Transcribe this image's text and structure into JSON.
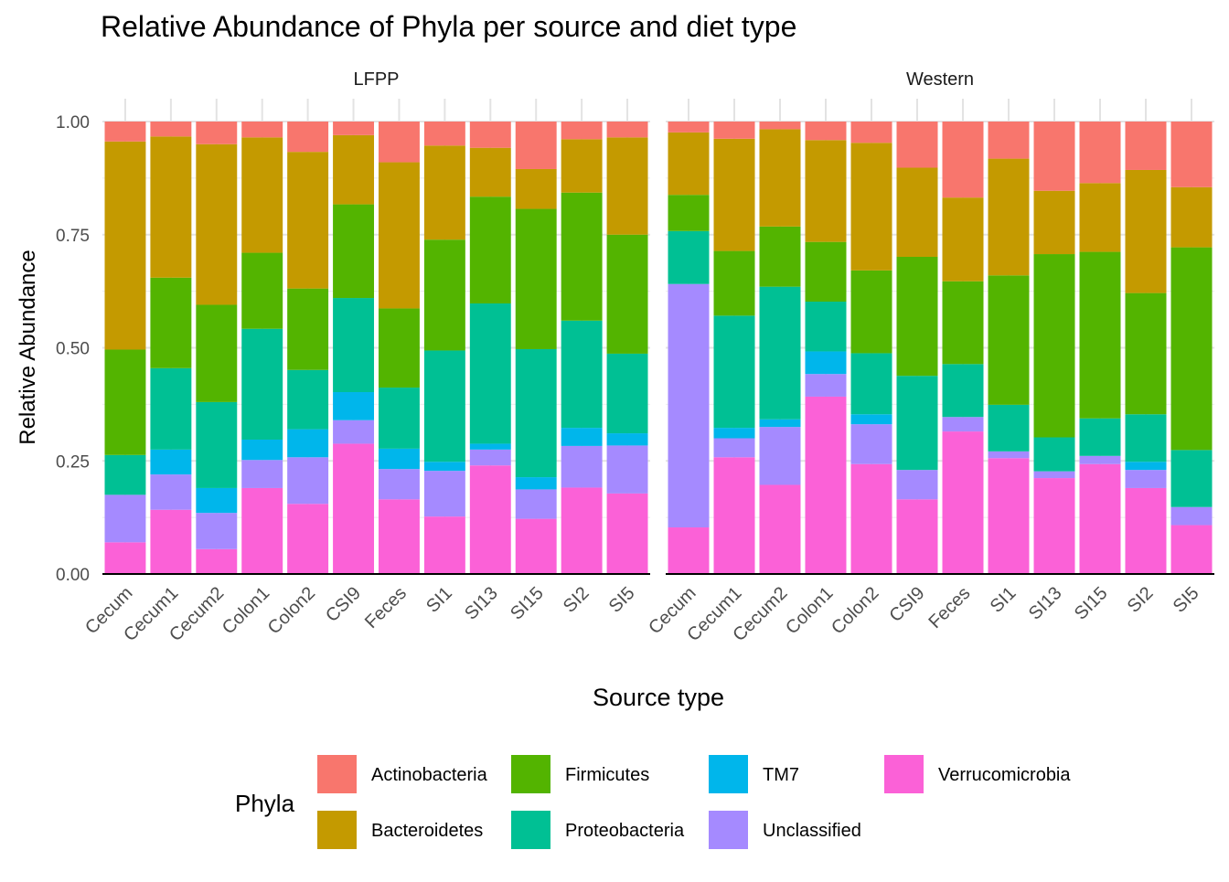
{
  "chart_data": {
    "type": "bar",
    "stacked": true,
    "title": "Relative Abundance of Phyla per source and diet type",
    "xlabel": "Source type",
    "ylabel": "Relative Abundance",
    "ylim": [
      0,
      1
    ],
    "yticks": [
      "0.00",
      "0.25",
      "0.50",
      "0.75",
      "1.00"
    ],
    "grid": true,
    "categories": [
      "Cecum",
      "Cecum1",
      "Cecum2",
      "Colon1",
      "Colon2",
      "CSI9",
      "Feces",
      "SI1",
      "SI13",
      "SI15",
      "SI2",
      "SI5"
    ],
    "legend": {
      "title": "Phyla",
      "position": "bottom",
      "items": [
        {
          "name": "Actinobacteria",
          "color": "#F8766D"
        },
        {
          "name": "Bacteroidetes",
          "color": "#C49A00"
        },
        {
          "name": "Firmicutes",
          "color": "#53B400"
        },
        {
          "name": "Proteobacteria",
          "color": "#00C094"
        },
        {
          "name": "TM7",
          "color": "#00B6EB"
        },
        {
          "name": "Unclassified",
          "color": "#A58AFF"
        },
        {
          "name": "Verrucomicrobia",
          "color": "#FB61D7"
        }
      ]
    },
    "stack_order_bottom_to_top": [
      "Verrucomicrobia",
      "Unclassified",
      "TM7",
      "Proteobacteria",
      "Firmicutes",
      "Bacteroidetes",
      "Actinobacteria"
    ],
    "panels": [
      {
        "label": "LFPP",
        "series": [
          {
            "name": "Verrucomicrobia",
            "values": [
              0.07,
              0.142,
              0.055,
              0.19,
              0.155,
              0.288,
              0.165,
              0.127,
              0.24,
              0.122,
              0.191,
              0.178
            ]
          },
          {
            "name": "Unclassified",
            "values": [
              0.105,
              0.078,
              0.08,
              0.062,
              0.103,
              0.052,
              0.067,
              0.101,
              0.035,
              0.065,
              0.092,
              0.106
            ]
          },
          {
            "name": "TM7",
            "values": [
              0.0,
              0.055,
              0.055,
              0.045,
              0.062,
              0.062,
              0.045,
              0.02,
              0.013,
              0.027,
              0.04,
              0.027
            ]
          },
          {
            "name": "Proteobacteria",
            "values": [
              0.088,
              0.18,
              0.19,
              0.245,
              0.131,
              0.208,
              0.135,
              0.246,
              0.31,
              0.283,
              0.237,
              0.176
            ]
          },
          {
            "name": "Firmicutes",
            "values": [
              0.233,
              0.2,
              0.215,
              0.168,
              0.18,
              0.207,
              0.175,
              0.245,
              0.236,
              0.31,
              0.283,
              0.263
            ]
          },
          {
            "name": "Bacteroidetes",
            "values": [
              0.46,
              0.312,
              0.355,
              0.255,
              0.302,
              0.153,
              0.323,
              0.208,
              0.108,
              0.088,
              0.118,
              0.215
            ]
          },
          {
            "name": "Actinobacteria",
            "values": [
              0.044,
              0.033,
              0.05,
              0.035,
              0.067,
              0.03,
              0.09,
              0.053,
              0.058,
              0.105,
              0.039,
              0.035
            ]
          }
        ]
      },
      {
        "label": "Western",
        "series": [
          {
            "name": "Verrucomicrobia",
            "values": [
              0.103,
              0.258,
              0.197,
              0.392,
              0.243,
              0.165,
              0.315,
              0.256,
              0.212,
              0.243,
              0.19,
              0.108
            ]
          },
          {
            "name": "Unclassified",
            "values": [
              0.538,
              0.042,
              0.128,
              0.05,
              0.088,
              0.065,
              0.032,
              0.015,
              0.015,
              0.018,
              0.04,
              0.04
            ]
          },
          {
            "name": "TM7",
            "values": [
              0.0,
              0.023,
              0.017,
              0.05,
              0.022,
              0.0,
              0.0,
              0.0,
              0.0,
              0.0,
              0.018,
              0.0
            ]
          },
          {
            "name": "Proteobacteria",
            "values": [
              0.117,
              0.248,
              0.293,
              0.11,
              0.135,
              0.208,
              0.117,
              0.103,
              0.075,
              0.083,
              0.105,
              0.126
            ]
          },
          {
            "name": "Firmicutes",
            "values": [
              0.08,
              0.143,
              0.133,
              0.132,
              0.183,
              0.263,
              0.183,
              0.286,
              0.405,
              0.368,
              0.268,
              0.448
            ]
          },
          {
            "name": "Bacteroidetes",
            "values": [
              0.138,
              0.248,
              0.215,
              0.225,
              0.282,
              0.197,
              0.185,
              0.258,
              0.14,
              0.152,
              0.272,
              0.133
            ]
          },
          {
            "name": "Actinobacteria",
            "values": [
              0.024,
              0.038,
              0.017,
              0.041,
              0.047,
              0.102,
              0.168,
              0.082,
              0.153,
              0.136,
              0.107,
              0.145
            ]
          }
        ]
      }
    ]
  }
}
